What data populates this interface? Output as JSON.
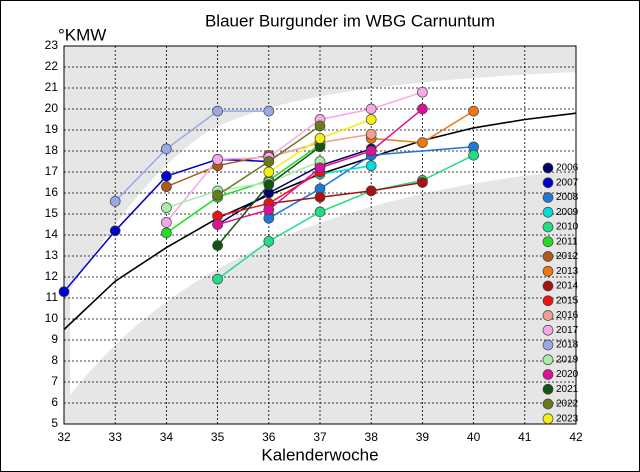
{
  "chart_data": {
    "type": "line",
    "title": "Blauer Burgunder im WBG Carnuntum",
    "y_label": "°KMW",
    "x_label": "Kalenderwoche",
    "xlim": [
      32,
      42
    ],
    "xticks": [
      32,
      33,
      34,
      35,
      36,
      37,
      38,
      39,
      40,
      41,
      42
    ],
    "ylim": [
      5,
      23
    ],
    "yticks": [
      5,
      6,
      7,
      8,
      9,
      10,
      11,
      12,
      13,
      14,
      15,
      16,
      17,
      18,
      19,
      20,
      21,
      22,
      23
    ],
    "grid": true,
    "legend": "right",
    "curve": {
      "color": "#000000",
      "x": [
        32,
        33,
        34,
        35,
        36,
        37,
        38,
        39,
        40,
        41,
        42
      ],
      "values": [
        9.5,
        11.8,
        13.4,
        14.8,
        15.9,
        16.9,
        17.7,
        18.5,
        19.1,
        19.5,
        19.8
      ]
    },
    "series": [
      {
        "name": "2006",
        "color": "#000066",
        "x": [
          35,
          36,
          37,
          38
        ],
        "values": [
          14.5,
          16.0,
          17.3,
          18.1
        ]
      },
      {
        "name": "2007",
        "color": "#0000cc",
        "x": [
          32,
          33,
          34,
          35,
          36
        ],
        "values": [
          11.3,
          14.2,
          16.8,
          17.6,
          17.5
        ]
      },
      {
        "name": "2008",
        "color": "#1e78d8",
        "x": [
          36,
          37,
          38,
          40
        ],
        "values": [
          14.8,
          16.2,
          17.8,
          18.2
        ]
      },
      {
        "name": "2009",
        "color": "#00dddd",
        "x": [
          37,
          38
        ],
        "values": [
          16.9,
          17.3
        ]
      },
      {
        "name": "2010",
        "color": "#22dd88",
        "x": [
          35,
          36,
          37,
          38,
          39,
          40
        ],
        "values": [
          11.9,
          13.7,
          15.1,
          16.1,
          16.6,
          17.8
        ]
      },
      {
        "name": "2011",
        "color": "#22dd22",
        "x": [
          34,
          35,
          36,
          37
        ],
        "values": [
          14.1,
          15.8,
          16.6,
          18.3
        ]
      },
      {
        "name": "2012",
        "color": "#b05a1a",
        "x": [
          34,
          35,
          36
        ],
        "values": [
          16.3,
          17.3,
          17.8
        ]
      },
      {
        "name": "2013",
        "color": "#ee7711",
        "x": [
          38,
          39,
          40
        ],
        "values": [
          18.6,
          18.4,
          19.9
        ]
      },
      {
        "name": "2014",
        "color": "#aa1111",
        "x": [
          36,
          37,
          38,
          39
        ],
        "values": [
          15.5,
          15.8,
          16.1,
          16.5
        ]
      },
      {
        "name": "2015",
        "color": "#ee1111",
        "x": [
          35,
          36,
          37
        ],
        "values": [
          14.9,
          15.5,
          17.0
        ]
      },
      {
        "name": "2016",
        "color": "#f0a090",
        "x": [
          36,
          37,
          38
        ],
        "values": [
          17.7,
          18.4,
          18.8
        ]
      },
      {
        "name": "2017",
        "color": "#f8a8e8",
        "x": [
          34,
          35,
          36,
          37,
          38,
          39
        ],
        "values": [
          14.6,
          17.6,
          17.7,
          19.5,
          20.0,
          20.8
        ]
      },
      {
        "name": "2018",
        "color": "#9aa8e8",
        "x": [
          33,
          34,
          35,
          36
        ],
        "values": [
          15.6,
          18.1,
          19.9,
          19.9
        ]
      },
      {
        "name": "2019",
        "color": "#a8eea8",
        "x": [
          34,
          35,
          36,
          37
        ],
        "values": [
          15.3,
          16.1,
          16.5,
          17.5
        ]
      },
      {
        "name": "2020",
        "color": "#dd1199",
        "x": [
          35,
          36,
          37,
          38,
          39
        ],
        "values": [
          14.5,
          15.2,
          17.2,
          18.0,
          20.0
        ]
      },
      {
        "name": "2021",
        "color": "#115511",
        "x": [
          35,
          36,
          37
        ],
        "values": [
          13.5,
          16.4,
          18.2
        ]
      },
      {
        "name": "2022",
        "color": "#6b7a1a",
        "x": [
          35,
          36,
          37
        ],
        "values": [
          15.9,
          17.5,
          19.2
        ]
      },
      {
        "name": "2023",
        "color": "#f4ee11",
        "x": [
          36,
          37,
          38
        ],
        "values": [
          17.0,
          18.6,
          19.5
        ]
      }
    ]
  }
}
